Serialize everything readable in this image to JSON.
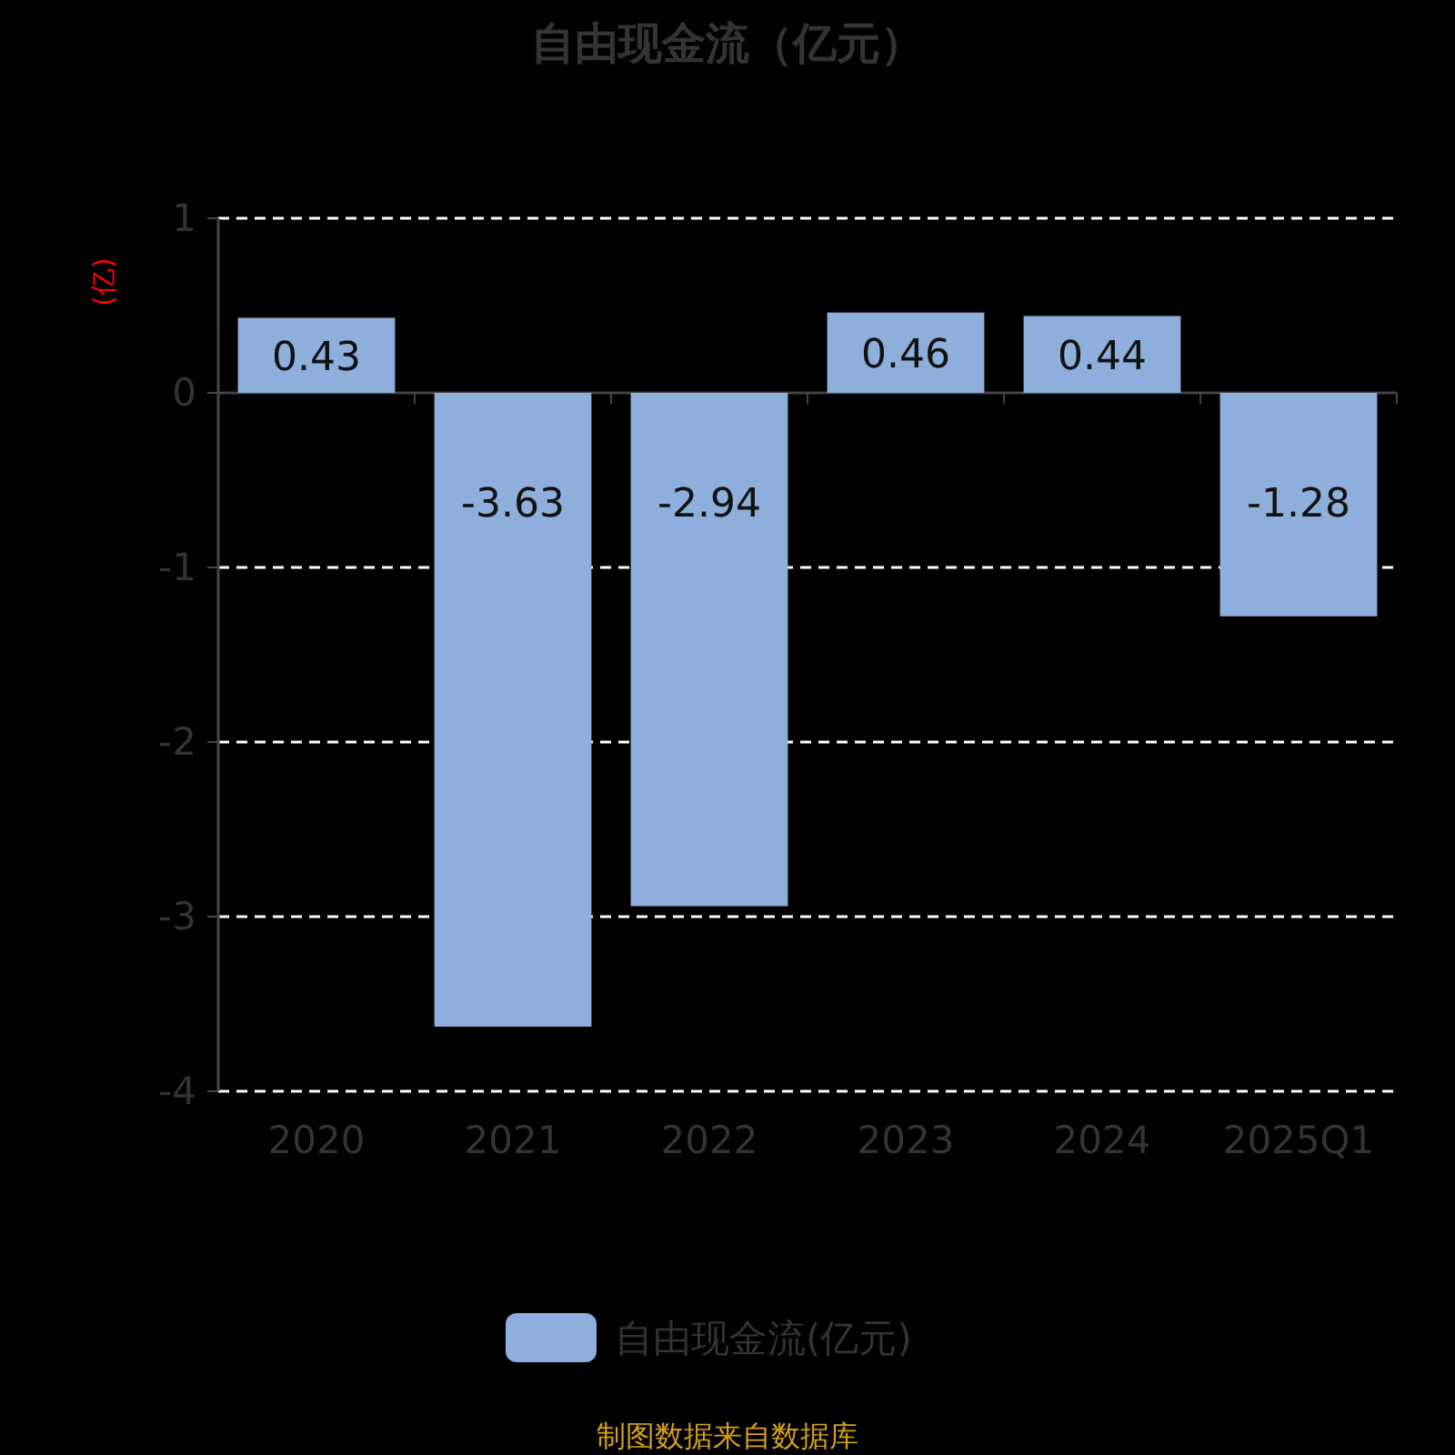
{
  "chart_data": {
    "type": "bar",
    "title": "自由现金流（亿元）",
    "ylabel": "(亿)",
    "categories": [
      "2020",
      "2021",
      "2022",
      "2023",
      "2024",
      "2025Q1"
    ],
    "series": [
      {
        "name": "自由现金流(亿元)",
        "color": "#8eaedb",
        "values": [
          0.43,
          -3.63,
          -2.94,
          0.46,
          0.44,
          -1.28
        ]
      }
    ],
    "ylim": [
      -4,
      1
    ],
    "yticks": [
      -4,
      -3,
      -2,
      -1,
      0,
      1
    ],
    "grid": "y",
    "legend": "bottom",
    "data_labels": true,
    "annotations": [
      "制图数据来自数据库"
    ]
  }
}
